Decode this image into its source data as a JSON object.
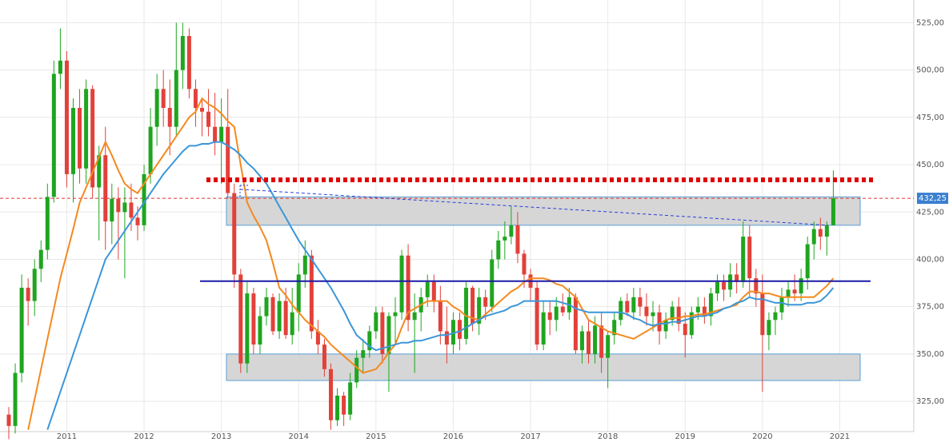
{
  "chart_data": {
    "type": "candlestick",
    "categories": [
      null,
      null,
      null,
      null,
      null,
      null,
      null,
      null,
      null,
      "2011",
      null,
      null,
      null,
      null,
      null,
      null,
      null,
      null,
      null,
      null,
      null,
      "2012",
      null,
      null,
      null,
      null,
      null,
      null,
      null,
      null,
      null,
      null,
      null,
      "2013",
      null,
      null,
      null,
      null,
      null,
      null,
      null,
      null,
      null,
      null,
      null,
      "2014",
      null,
      null,
      null,
      null,
      null,
      null,
      null,
      null,
      null,
      null,
      null,
      "2015",
      null,
      null,
      null,
      null,
      null,
      null,
      null,
      null,
      null,
      null,
      null,
      "2016",
      null,
      null,
      null,
      null,
      null,
      null,
      null,
      null,
      null,
      null,
      null,
      "2017",
      null,
      null,
      null,
      null,
      null,
      null,
      null,
      null,
      null,
      null,
      null,
      "2018",
      null,
      null,
      null,
      null,
      null,
      null,
      null,
      null,
      null,
      null,
      null,
      "2019",
      null,
      null,
      null,
      null,
      null,
      null,
      null,
      null,
      null,
      null,
      null,
      "2020",
      null,
      null,
      null,
      null,
      null,
      null,
      null,
      null,
      null,
      null,
      null,
      "2021"
    ],
    "open": [
      318,
      312,
      340,
      385,
      378,
      395,
      405,
      433,
      498,
      505,
      445,
      480,
      448,
      490,
      438,
      455,
      420,
      432,
      425,
      430,
      422,
      418,
      445,
      470,
      490,
      480,
      470,
      500,
      518,
      490,
      480,
      478,
      470,
      462,
      470,
      435,
      392,
      345,
      382,
      355,
      370,
      380,
      362,
      378,
      360,
      372,
      392,
      402,
      362,
      355,
      342,
      315,
      328,
      318,
      335,
      348,
      352,
      362,
      372,
      350,
      370,
      372,
      402,
      368,
      372,
      380,
      388,
      378,
      362,
      355,
      368,
      358,
      385,
      366,
      380,
      375,
      400,
      410,
      412,
      418,
      403,
      392,
      385,
      355,
      372,
      368,
      375,
      372,
      380,
      352,
      362,
      350,
      365,
      348,
      360,
      368,
      378,
      372,
      380,
      375,
      370,
      372,
      362,
      368,
      375,
      366,
      360,
      372,
      375,
      370,
      382,
      388,
      384,
      392,
      388,
      412,
      390,
      382,
      360,
      368,
      372,
      380,
      384,
      382,
      390,
      408,
      416,
      412,
      418,
      null
    ],
    "high": [
      322,
      345,
      392,
      390,
      400,
      410,
      440,
      505,
      522,
      510,
      485,
      490,
      495,
      492,
      460,
      470,
      440,
      438,
      438,
      440,
      428,
      450,
      480,
      498,
      500,
      495,
      525,
      525,
      522,
      495,
      485,
      490,
      488,
      485,
      490,
      440,
      395,
      388,
      385,
      375,
      385,
      382,
      382,
      385,
      385,
      398,
      410,
      405,
      368,
      358,
      345,
      332,
      330,
      340,
      352,
      358,
      365,
      375,
      375,
      372,
      380,
      405,
      408,
      382,
      385,
      392,
      392,
      386,
      375,
      372,
      372,
      388,
      386,
      385,
      384,
      405,
      415,
      420,
      428,
      425,
      405,
      395,
      388,
      378,
      378,
      380,
      382,
      385,
      382,
      365,
      368,
      370,
      372,
      362,
      372,
      380,
      382,
      385,
      385,
      382,
      378,
      376,
      372,
      378,
      380,
      372,
      375,
      380,
      380,
      385,
      392,
      392,
      398,
      398,
      420,
      418,
      395,
      392,
      372,
      375,
      385,
      388,
      392,
      395,
      412,
      420,
      422,
      420,
      447,
      null
    ],
    "low": [
      305,
      308,
      335,
      365,
      370,
      388,
      400,
      430,
      490,
      438,
      430,
      440,
      440,
      432,
      410,
      405,
      408,
      400,
      390,
      415,
      410,
      415,
      440,
      460,
      470,
      455,
      465,
      490,
      485,
      470,
      465,
      465,
      455,
      440,
      432,
      385,
      340,
      340,
      350,
      350,
      365,
      360,
      358,
      358,
      355,
      362,
      385,
      358,
      350,
      338,
      310,
      312,
      312,
      315,
      332,
      340,
      348,
      358,
      345,
      330,
      355,
      368,
      362,
      340,
      362,
      375,
      372,
      355,
      345,
      350,
      352,
      355,
      362,
      360,
      368,
      372,
      395,
      400,
      408,
      398,
      385,
      378,
      352,
      352,
      360,
      362,
      370,
      368,
      350,
      345,
      345,
      345,
      340,
      332,
      355,
      365,
      370,
      368,
      370,
      365,
      362,
      355,
      358,
      365,
      362,
      348,
      358,
      368,
      366,
      365,
      378,
      378,
      380,
      382,
      385,
      380,
      375,
      330,
      352,
      360,
      368,
      375,
      378,
      378,
      384,
      400,
      405,
      402,
      418,
      null
    ],
    "close": [
      312,
      340,
      385,
      378,
      395,
      405,
      433,
      498,
      505,
      445,
      480,
      448,
      490,
      438,
      455,
      420,
      432,
      425,
      430,
      422,
      418,
      445,
      470,
      490,
      480,
      470,
      500,
      518,
      490,
      480,
      478,
      470,
      462,
      470,
      435,
      392,
      345,
      382,
      355,
      370,
      380,
      362,
      378,
      360,
      372,
      392,
      402,
      362,
      355,
      342,
      315,
      328,
      318,
      335,
      348,
      352,
      362,
      372,
      350,
      370,
      372,
      402,
      368,
      372,
      380,
      388,
      378,
      362,
      355,
      368,
      358,
      385,
      366,
      380,
      375,
      400,
      410,
      412,
      418,
      403,
      392,
      385,
      355,
      372,
      368,
      375,
      372,
      380,
      352,
      362,
      350,
      365,
      348,
      360,
      368,
      378,
      372,
      380,
      375,
      370,
      372,
      362,
      368,
      375,
      366,
      360,
      372,
      375,
      370,
      382,
      388,
      384,
      392,
      388,
      412,
      390,
      382,
      360,
      368,
      372,
      380,
      384,
      382,
      390,
      408,
      416,
      412,
      418,
      432.25,
      null
    ],
    "up_color": "#1fa51f",
    "down_color": "#e2413a",
    "overlays": [
      {
        "color": "#f5891f",
        "values": [
          null,
          null,
          null,
          310,
          326,
          342,
          358,
          374,
          390,
          403,
          416,
          430,
          438,
          446,
          454,
          462,
          455,
          447,
          440,
          437,
          435,
          440,
          445,
          450,
          455,
          460,
          465,
          470,
          475,
          478,
          485,
          482,
          480,
          477,
          473,
          470,
          450,
          430,
          423,
          417,
          410,
          398,
          385,
          381,
          376,
          372,
          368,
          365,
          362,
          359,
          355,
          352,
          349,
          346,
          343,
          340,
          341,
          342,
          346,
          351,
          355,
          364,
          372,
          374,
          376,
          378,
          378,
          378,
          378,
          375,
          373,
          370,
          369,
          368,
          371,
          374,
          377,
          380,
          383,
          385,
          388,
          390,
          390,
          390,
          389,
          387,
          386,
          383,
          380,
          374,
          368,
          366,
          364,
          362,
          361,
          360,
          359,
          358,
          360,
          362,
          364,
          366,
          368,
          369,
          369,
          370,
          370,
          371,
          371,
          372,
          373,
          374,
          375,
          376,
          380,
          383,
          383,
          382,
          382,
          381,
          380,
          380,
          380,
          380,
          380,
          380,
          383,
          386,
          390,
          null
        ]
      },
      {
        "color": "#3b96d9",
        "values": [
          null,
          null,
          null,
          null,
          null,
          null,
          310,
          320,
          330,
          340,
          350,
          360,
          370,
          380,
          390,
          400,
          405,
          410,
          415,
          420,
          425,
          430,
          435,
          440,
          445,
          449,
          453,
          457,
          460,
          460,
          461,
          461,
          462,
          462,
          460,
          458,
          455,
          451,
          448,
          444,
          440,
          434,
          428,
          422,
          416,
          410,
          405,
          400,
          395,
          390,
          385,
          379,
          373,
          366,
          360,
          357,
          354,
          352,
          353,
          354,
          355,
          356,
          356,
          357,
          357,
          358,
          359,
          360,
          360,
          361,
          362,
          364,
          366,
          368,
          370,
          371,
          372,
          373,
          375,
          376,
          378,
          378,
          378,
          378,
          378,
          378,
          377,
          376,
          374,
          373,
          372,
          372,
          372,
          372,
          372,
          372,
          371,
          369,
          368,
          366,
          365,
          366,
          366,
          367,
          367,
          368,
          369,
          370,
          370,
          371,
          372,
          374,
          375,
          377,
          378,
          380,
          379,
          379,
          378,
          377,
          377,
          376,
          376,
          376,
          377,
          377,
          378,
          381,
          385,
          null
        ]
      }
    ],
    "ylim": [
      309,
      537
    ],
    "yticks": [
      {
        "value": 325,
        "label": "325,00"
      },
      {
        "value": 350,
        "label": "350,00"
      },
      {
        "value": 375,
        "label": "375,00"
      },
      {
        "value": 400,
        "label": "400,00"
      },
      {
        "value": 425,
        "label": "425,00"
      },
      {
        "value": 450,
        "label": "450,00"
      },
      {
        "value": 475,
        "label": "475,00"
      },
      {
        "value": 500,
        "label": "500,00"
      },
      {
        "value": 525,
        "label": "525,00"
      }
    ],
    "grid": true,
    "last_price": {
      "value": 432.25,
      "label": "432,25"
    },
    "levels": [
      {
        "value": 442,
        "color": "#e00000",
        "style": "dotted"
      },
      {
        "value": 388.5,
        "color": "#1a1aa8",
        "style": "solid"
      }
    ],
    "zones": [
      [
        418,
        433
      ],
      [
        336,
        350
      ]
    ],
    "trendline": [
      437,
      418
    ]
  }
}
